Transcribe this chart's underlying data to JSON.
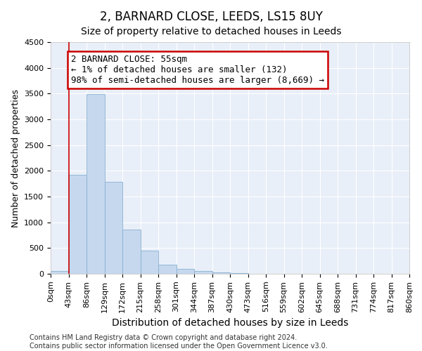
{
  "title": "2, BARNARD CLOSE, LEEDS, LS15 8UY",
  "subtitle": "Size of property relative to detached houses in Leeds",
  "xlabel": "Distribution of detached houses by size in Leeds",
  "ylabel": "Number of detached properties",
  "bar_color": "#c5d8ee",
  "bar_edge_color": "#8ab0d0",
  "background_color": "#e8eff8",
  "grid_color": "#ffffff",
  "fig_bg_color": "#ffffff",
  "bins": [
    "0sqm",
    "43sqm",
    "86sqm",
    "129sqm",
    "172sqm",
    "215sqm",
    "258sqm",
    "301sqm",
    "344sqm",
    "387sqm",
    "430sqm",
    "473sqm",
    "516sqm",
    "559sqm",
    "602sqm",
    "645sqm",
    "688sqm",
    "731sqm",
    "774sqm",
    "817sqm",
    "860sqm"
  ],
  "bar_heights": [
    50,
    1920,
    3490,
    1790,
    860,
    455,
    175,
    100,
    55,
    30,
    15,
    5,
    3,
    2,
    1,
    1,
    1,
    1,
    1,
    1
  ],
  "ylim": [
    0,
    4500
  ],
  "yticks": [
    0,
    500,
    1000,
    1500,
    2000,
    2500,
    3000,
    3500,
    4000,
    4500
  ],
  "property_line_x": 1,
  "annotation_line1": "2 BARNARD CLOSE: 55sqm",
  "annotation_line2": "← 1% of detached houses are smaller (132)",
  "annotation_line3": "98% of semi-detached houses are larger (8,669) →",
  "annotation_box_color": "#ffffff",
  "annotation_border_color": "#cc0000",
  "vline_color": "#cc0000",
  "footer_text": "Contains HM Land Registry data © Crown copyright and database right 2024.\nContains public sector information licensed under the Open Government Licence v3.0.",
  "title_fontsize": 12,
  "subtitle_fontsize": 10,
  "xlabel_fontsize": 10,
  "ylabel_fontsize": 9,
  "tick_fontsize": 8,
  "annot_fontsize": 9,
  "footer_fontsize": 7
}
